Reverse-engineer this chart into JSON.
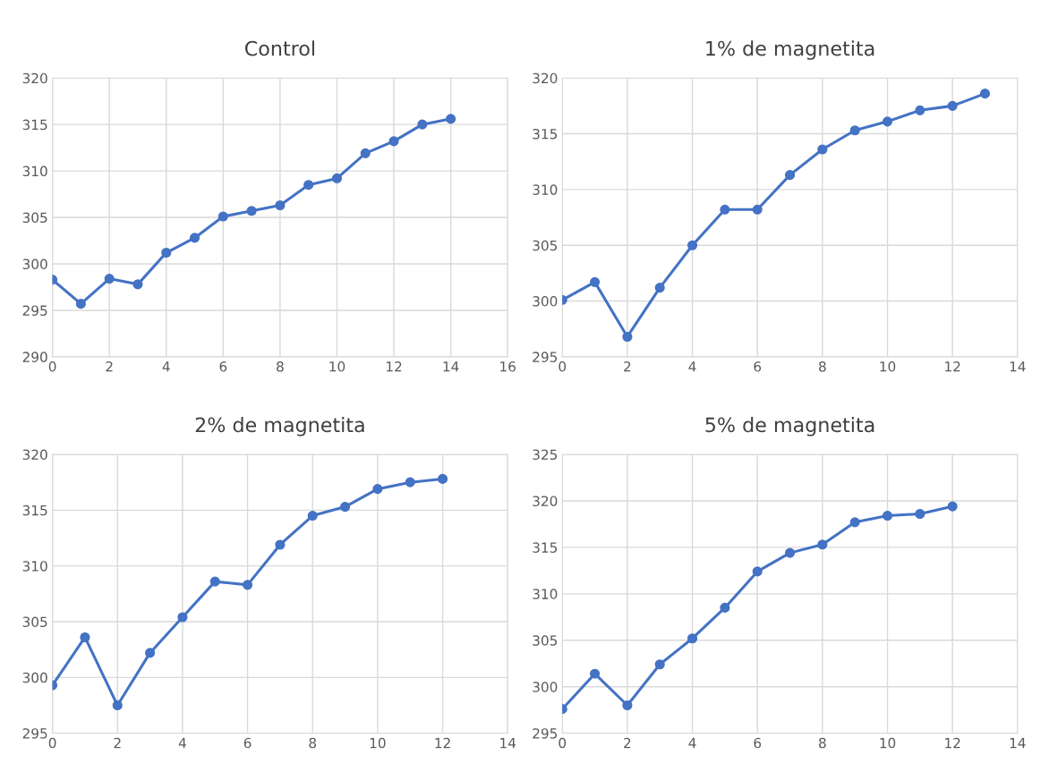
{
  "chart_data": [
    {
      "type": "line",
      "title": "Control",
      "x": [
        0,
        1,
        2,
        3,
        4,
        5,
        6,
        7,
        8,
        9,
        10,
        11,
        12,
        13,
        14
      ],
      "values": [
        298.3,
        295.7,
        298.4,
        297.8,
        301.2,
        302.8,
        305.1,
        305.7,
        306.3,
        308.5,
        309.2,
        311.9,
        313.2,
        315.0,
        315.6
      ],
      "color": "#4472c4",
      "marker": "circle",
      "xlim": [
        0,
        16
      ],
      "xticks": [
        0,
        2,
        4,
        6,
        8,
        10,
        12,
        14,
        16
      ],
      "ylim": [
        290,
        320
      ],
      "yticks": [
        290,
        295,
        300,
        305,
        310,
        315,
        320
      ],
      "grid": true
    },
    {
      "type": "line",
      "title": "1% de magnetita",
      "x": [
        0,
        1,
        2,
        3,
        4,
        5,
        6,
        7,
        8,
        9,
        10,
        11,
        12,
        13
      ],
      "values": [
        300.1,
        301.7,
        296.8,
        301.2,
        305.0,
        308.2,
        308.2,
        311.3,
        313.6,
        315.3,
        316.1,
        317.1,
        317.5,
        318.6
      ],
      "color": "#4472c4",
      "marker": "circle",
      "xlim": [
        0,
        14
      ],
      "xticks": [
        0,
        2,
        4,
        6,
        8,
        10,
        12,
        14
      ],
      "ylim": [
        295,
        320
      ],
      "yticks": [
        295,
        300,
        305,
        310,
        315,
        320
      ],
      "grid": true
    },
    {
      "type": "line",
      "title": "2% de magnetita",
      "x": [
        0,
        1,
        2,
        3,
        4,
        5,
        6,
        7,
        8,
        9,
        10,
        11,
        12
      ],
      "values": [
        299.3,
        303.6,
        297.5,
        302.2,
        305.4,
        308.6,
        308.3,
        311.9,
        314.5,
        315.3,
        316.9,
        317.5,
        317.8
      ],
      "color": "#4472c4",
      "marker": "circle",
      "xlim": [
        0,
        14
      ],
      "xticks": [
        0,
        2,
        4,
        6,
        8,
        10,
        12,
        14
      ],
      "ylim": [
        295,
        320
      ],
      "yticks": [
        295,
        300,
        305,
        310,
        315,
        320
      ],
      "grid": true
    },
    {
      "type": "line",
      "title": "5% de magnetita",
      "x": [
        0,
        1,
        2,
        3,
        4,
        5,
        6,
        7,
        8,
        9,
        10,
        11,
        12
      ],
      "values": [
        297.6,
        301.4,
        298.0,
        302.4,
        305.2,
        308.5,
        312.4,
        314.4,
        315.3,
        317.7,
        318.4,
        318.6,
        319.4
      ],
      "color": "#4472c4",
      "marker": "circle",
      "xlim": [
        0,
        14
      ],
      "xticks": [
        0,
        2,
        4,
        6,
        8,
        10,
        12,
        14
      ],
      "ylim": [
        295,
        325
      ],
      "yticks": [
        295,
        300,
        305,
        310,
        315,
        320,
        325
      ],
      "grid": true
    }
  ]
}
